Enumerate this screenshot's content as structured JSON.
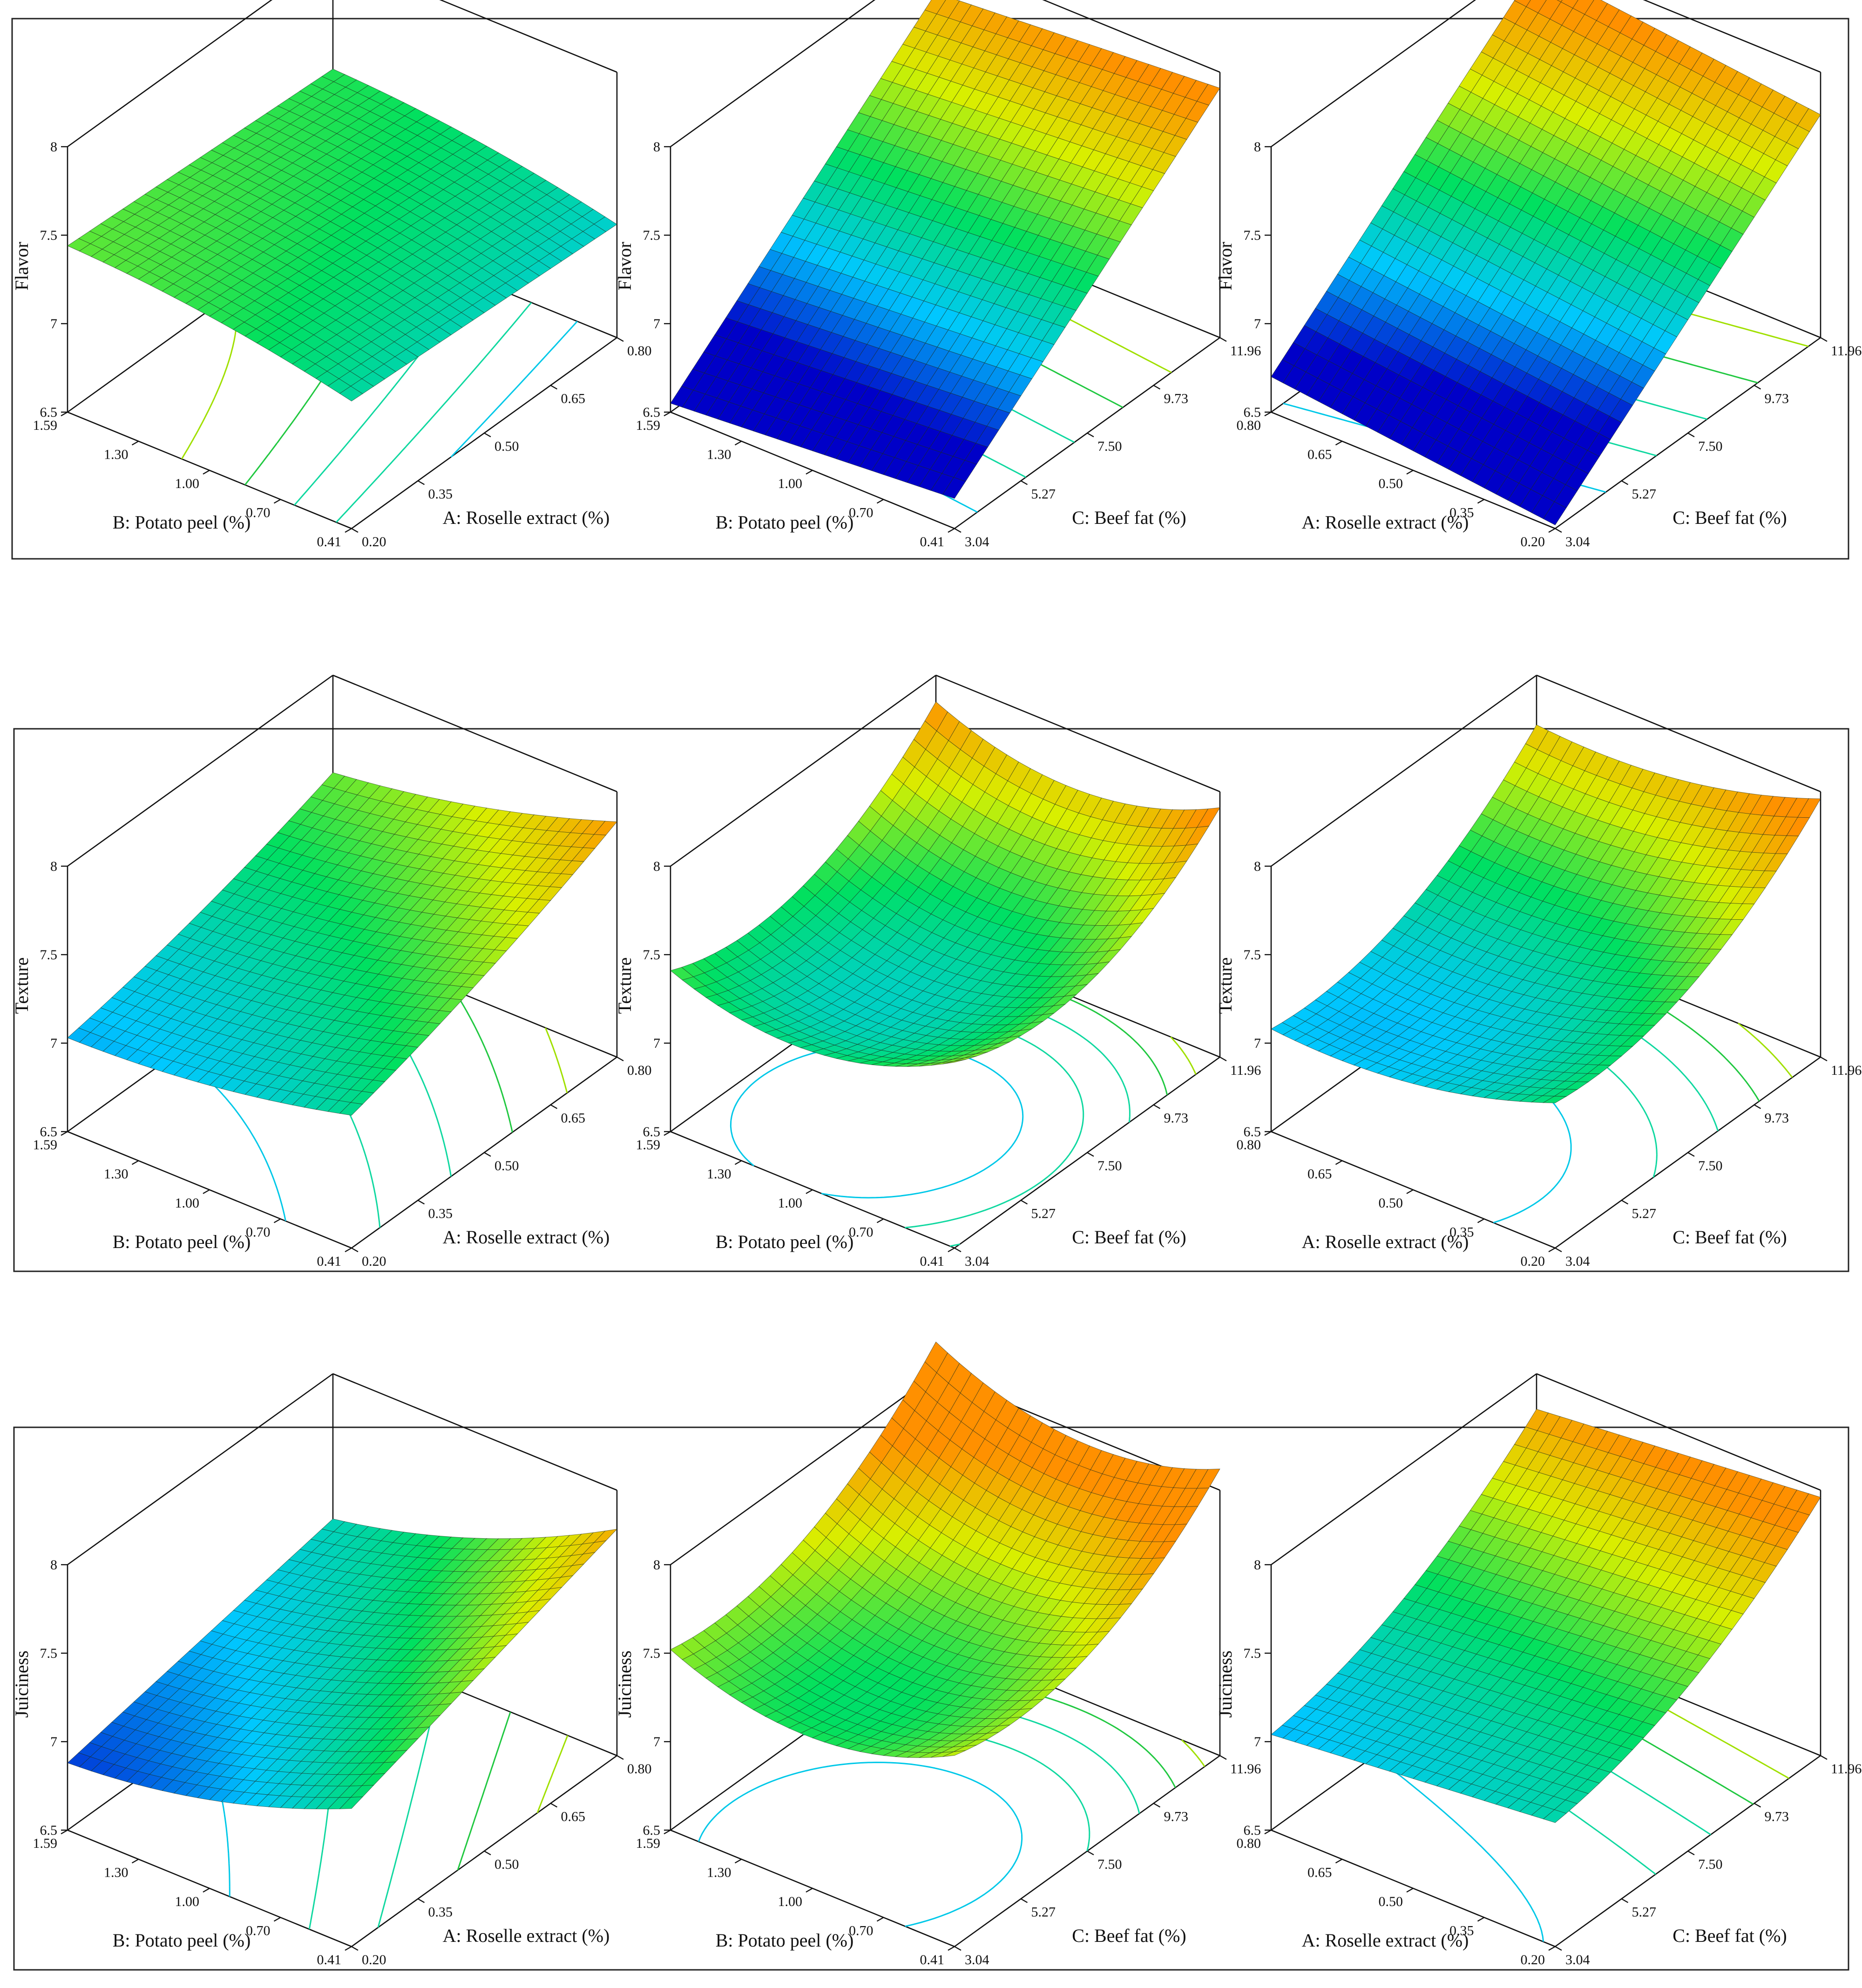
{
  "figure": {
    "rows": [
      {
        "response": "Flavor"
      },
      {
        "response": "Texture"
      },
      {
        "response": "Juiciness"
      }
    ]
  },
  "colors": {
    "scale": [
      "#0000c8",
      "#00c8ff",
      "#00e060",
      "#d8f000",
      "#ff9000"
    ],
    "contour_levels": [
      "#2040c0",
      "#00c8e8",
      "#10d8a0",
      "#20c840",
      "#a0e000",
      "#f0f000"
    ]
  },
  "axes": {
    "A": {
      "label": "A: Roselle extract (%)",
      "ticks": [
        "0.20",
        "0.35",
        "0.50",
        "0.65",
        "0.80"
      ]
    },
    "B": {
      "label": "B: Potato peel (%)",
      "ticks": [
        "0.41",
        "0.70",
        "1.00",
        "1.30",
        "1.59"
      ]
    },
    "C": {
      "label": "C: Beef fat (%)",
      "ticks": [
        "3.04",
        "5.27",
        "7.50",
        "9.73",
        "11.96"
      ]
    },
    "z_ticks": [
      "6.5",
      "7",
      "7.5",
      "8"
    ]
  },
  "chart_data": [
    {
      "type": "surface3d",
      "panel": "flavor-AB",
      "zlabel": "Flavor",
      "x": "B: Potato peel (%)",
      "y": "A: Roselle extract (%)",
      "zlim": [
        6.5,
        8
      ],
      "model": {
        "c": 7.33,
        "a": 0.11,
        "b": -0.04,
        "ab": 0.0,
        "a2": -0.04,
        "b2": 0.0
      }
    },
    {
      "type": "surface3d",
      "panel": "flavor-BC",
      "zlabel": "Flavor",
      "x": "B: Potato peel (%)",
      "y": "C: Beef fat (%)",
      "zlim": [
        6.5,
        8
      ],
      "model": {
        "c": 7.23,
        "a": -0.06,
        "b": 0.62,
        "ab": 0.0,
        "a2": 0.0,
        "b2": 0.0
      }
    },
    {
      "type": "surface3d",
      "panel": "flavor-AC",
      "zlabel": "Flavor",
      "x": "A: Roselle extract (%)",
      "y": "C: Beef fat (%)",
      "zlim": [
        6.5,
        8
      ],
      "model": {
        "c": 7.23,
        "a": 0.09,
        "b": 0.62,
        "ab": 0.0,
        "a2": 0.0,
        "b2": 0.0
      }
    },
    {
      "type": "surface3d",
      "panel": "texture-AB",
      "zlabel": "Texture",
      "x": "B: Potato peel (%)",
      "y": "A: Roselle extract (%)",
      "zlim": [
        6.5,
        8
      ],
      "model": {
        "c": 7.3,
        "a": -0.15,
        "b": 0.25,
        "ab": -0.04,
        "a2": 0.05,
        "b2": 0.04
      }
    },
    {
      "type": "surface3d",
      "panel": "texture-BC",
      "zlabel": "Texture",
      "x": "B: Potato peel (%)",
      "y": "C: Beef fat (%)",
      "zlim": [
        6.5,
        8
      ],
      "model": {
        "c": 7.2,
        "a": -0.05,
        "b": 0.2,
        "ab": 0.02,
        "a2": 0.2,
        "b2": 0.28
      }
    },
    {
      "type": "surface3d",
      "panel": "texture-AC",
      "zlabel": "Texture",
      "x": "A: Roselle extract (%)",
      "y": "C: Beef fat (%)",
      "zlim": [
        6.5,
        8
      ],
      "model": {
        "c": 7.2,
        "a": -0.12,
        "b": 0.32,
        "ab": 0.0,
        "a2": 0.1,
        "b2": 0.22
      }
    },
    {
      "type": "surface3d",
      "panel": "juiciness-AB",
      "zlabel": "Juiciness",
      "x": "B: Potato peel (%)",
      "y": "A: Roselle extract (%)",
      "zlim": [
        6.5,
        8
      ],
      "model": {
        "c": 7.2,
        "a": -0.25,
        "b": 0.2,
        "ab": -0.05,
        "a2": 0.08,
        "b2": 0.0
      }
    },
    {
      "type": "surface3d",
      "panel": "juiciness-BC",
      "zlabel": "Juiciness",
      "x": "B: Potato peel (%)",
      "y": "C: Beef fat (%)",
      "zlim": [
        6.5,
        8
      ],
      "model": {
        "c": 7.4,
        "a": 0.0,
        "b": 0.3,
        "ab": 0.03,
        "a2": 0.2,
        "b2": 0.25
      }
    },
    {
      "type": "surface3d",
      "panel": "juiciness-AC",
      "zlabel": "Juiciness",
      "x": "A: Roselle extract (%)",
      "y": "C: Beef fat (%)",
      "zlim": [
        6.5,
        8
      ],
      "model": {
        "c": 7.35,
        "a": -0.08,
        "b": 0.38,
        "ab": 0.0,
        "a2": 0.0,
        "b2": 0.15
      }
    }
  ]
}
